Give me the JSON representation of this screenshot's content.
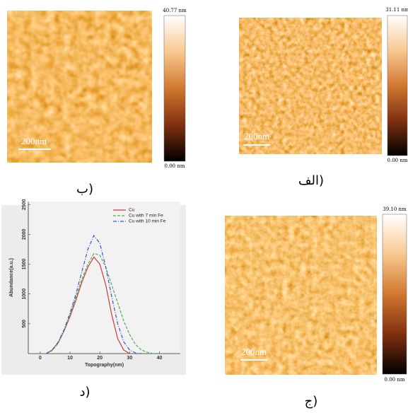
{
  "panels": [
    {
      "caption": "ب)",
      "scale_bar": "200nm",
      "colorbar_max": "40.77 nm",
      "colorbar_min": "0.00 nm"
    },
    {
      "caption": "الف)",
      "scale_bar": "200nm",
      "colorbar_max": "31.11 nm",
      "colorbar_min": "0.00 nm"
    },
    {
      "caption": "ج)",
      "scale_bar": "200nm",
      "colorbar_max": "39.10 nm",
      "colorbar_min": "0.00 nm"
    },
    {
      "caption": "د)"
    }
  ],
  "chart_data": {
    "type": "line",
    "x_label": "Topography(nm)",
    "y_label": "Abundance(a.u.)",
    "x": [
      2,
      4,
      6,
      8,
      10,
      12,
      14,
      16,
      18,
      20,
      22,
      24,
      26,
      28,
      30,
      32,
      34,
      36,
      38
    ],
    "series": [
      {
        "name": "Cu",
        "color": "#d03a3a",
        "dash": "solid",
        "values": [
          0,
          60,
          180,
          380,
          620,
          900,
          1200,
          1450,
          1620,
          1500,
          1150,
          650,
          250,
          60,
          0,
          null,
          null,
          null,
          null
        ]
      },
      {
        "name": "Cu with 7 min Fe",
        "color": "#4caf4c",
        "dash": "dashed",
        "values": [
          0,
          50,
          170,
          380,
          650,
          950,
          1250,
          1500,
          1680,
          1650,
          1450,
          1150,
          850,
          550,
          320,
          150,
          60,
          20,
          0
        ]
      },
      {
        "name": "Cu with 10 min Fe",
        "color": "#3f4fd0",
        "dash": "dashdot",
        "values": [
          0,
          60,
          190,
          400,
          680,
          1000,
          1380,
          1750,
          1980,
          1850,
          1450,
          950,
          500,
          200,
          60,
          10,
          0,
          null,
          null
        ]
      }
    ],
    "xlim": [
      -4,
      47
    ],
    "ylim": [
      0,
      2550
    ],
    "xticks": [
      0,
      10,
      20,
      30,
      40
    ],
    "yticks": [
      500,
      1000,
      1500,
      2000,
      2500
    ],
    "legend": "top-right"
  }
}
